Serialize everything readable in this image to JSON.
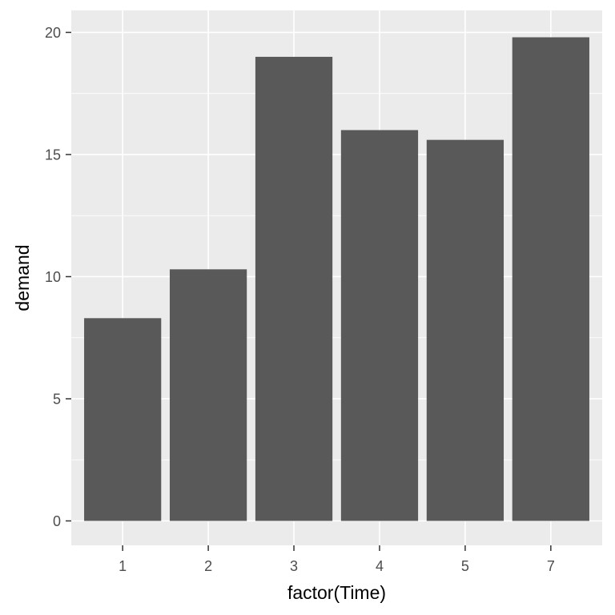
{
  "chart_data": {
    "type": "bar",
    "categories": [
      "1",
      "2",
      "3",
      "4",
      "5",
      "7"
    ],
    "values": [
      8.3,
      10.3,
      19.0,
      16.0,
      15.6,
      19.8
    ],
    "xlabel": "factor(Time)",
    "ylabel": "demand",
    "ylim": [
      -1,
      20.9
    ],
    "yticks": [
      0,
      5,
      10,
      15,
      20
    ],
    "grid": true,
    "colors": {
      "panel_background": "#ebebeb",
      "gridline": "#ffffff",
      "bar_fill": "#595959",
      "tick_text": "#4d4d4d",
      "axis_title": "#000000"
    }
  }
}
